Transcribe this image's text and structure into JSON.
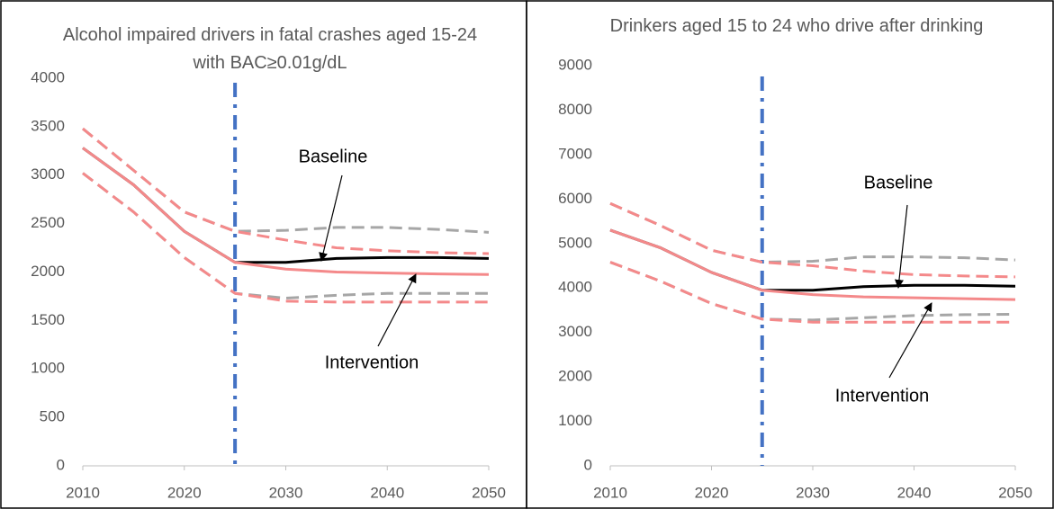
{
  "chart_data": [
    {
      "type": "line",
      "title": "Alcohol impaired drivers in fatal crashes aged 15-24 with BAC≥0.01g/dL",
      "x": [
        2010,
        2015,
        2020,
        2025,
        2030,
        2035,
        2040,
        2045,
        2050
      ],
      "xlim": [
        2010,
        2050
      ],
      "xticks": [
        2010,
        2020,
        2030,
        2040,
        2050
      ],
      "ylim": [
        0,
        4000
      ],
      "yticks": [
        0,
        500,
        1000,
        1500,
        2000,
        2500,
        3000,
        3500,
        4000
      ],
      "vline": 2025,
      "vline_color": "#4472c4",
      "series": [
        {
          "color": "#a6a6a6",
          "dashed": true,
          "values": [
            3480,
            3050,
            2620,
            2420,
            2430,
            2460,
            2460,
            2440,
            2410
          ]
        },
        {
          "color": "#a6a6a6",
          "dashed": true,
          "values": [
            3020,
            2620,
            2150,
            1780,
            1730,
            1760,
            1780,
            1780,
            1780
          ]
        },
        {
          "name": "Baseline",
          "color": "#000000",
          "dashed": false,
          "values": [
            3280,
            2900,
            2420,
            2100,
            2100,
            2140,
            2150,
            2150,
            2140
          ]
        },
        {
          "color": "#f4898a",
          "dashed": true,
          "values": [
            3480,
            3050,
            2620,
            2420,
            2330,
            2250,
            2220,
            2200,
            2190
          ]
        },
        {
          "color": "#f4898a",
          "dashed": true,
          "values": [
            3020,
            2620,
            2150,
            1780,
            1700,
            1690,
            1690,
            1690,
            1690
          ]
        },
        {
          "name": "Intervention",
          "color": "#f4898a",
          "dashed": false,
          "values": [
            3280,
            2900,
            2420,
            2100,
            2030,
            2000,
            1990,
            1980,
            1975
          ]
        }
      ]
    },
    {
      "type": "line",
      "title": "Drinkers aged 15 to 24 who drive after drinking",
      "x": [
        2010,
        2015,
        2020,
        2025,
        2030,
        2035,
        2040,
        2045,
        2050
      ],
      "xlim": [
        2010,
        2050
      ],
      "xticks": [
        2010,
        2020,
        2030,
        2040,
        2050
      ],
      "ylim": [
        0,
        9000
      ],
      "yticks": [
        0,
        1000,
        2000,
        3000,
        4000,
        5000,
        6000,
        7000,
        8000,
        9000
      ],
      "vline": 2025,
      "vline_color": "#4472c4",
      "series": [
        {
          "color": "#a6a6a6",
          "dashed": true,
          "values": [
            5900,
            5400,
            4850,
            4580,
            4600,
            4700,
            4700,
            4680,
            4630
          ]
        },
        {
          "color": "#a6a6a6",
          "dashed": true,
          "values": [
            4580,
            4150,
            3650,
            3300,
            3280,
            3330,
            3380,
            3400,
            3410
          ]
        },
        {
          "name": "Baseline",
          "color": "#000000",
          "dashed": false,
          "values": [
            5300,
            4900,
            4350,
            3950,
            3950,
            4030,
            4060,
            4060,
            4040
          ]
        },
        {
          "color": "#f4898a",
          "dashed": true,
          "values": [
            5900,
            5400,
            4850,
            4580,
            4500,
            4380,
            4300,
            4270,
            4250
          ]
        },
        {
          "color": "#f4898a",
          "dashed": true,
          "values": [
            4580,
            4150,
            3650,
            3300,
            3230,
            3230,
            3230,
            3230,
            3230
          ]
        },
        {
          "name": "Intervention",
          "color": "#f4898a",
          "dashed": false,
          "values": [
            5300,
            4900,
            4350,
            3950,
            3850,
            3800,
            3780,
            3760,
            3740
          ]
        }
      ]
    }
  ]
}
